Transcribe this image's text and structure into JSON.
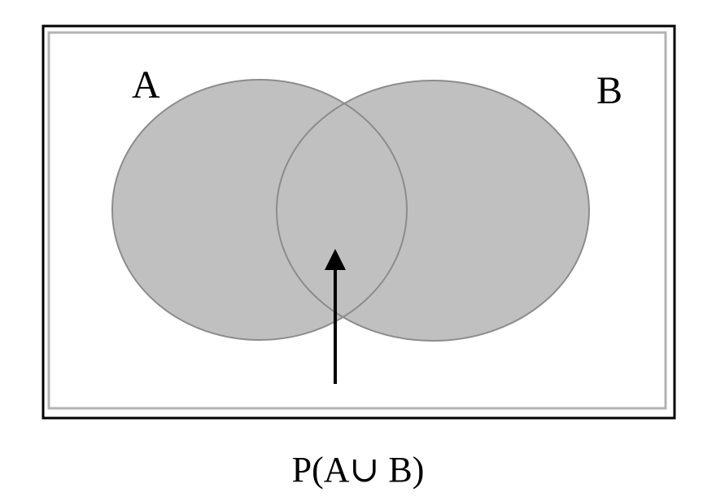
{
  "diagram": {
    "set_a_label": "A",
    "set_b_label": "B",
    "caption": "P(A∪ B)"
  },
  "colors": {
    "frame": "#000000",
    "inner_frame": "#b3b3b3",
    "fill": "#c0c0c0",
    "circle_stroke": "#8c8c8c",
    "arrow": "#000000"
  }
}
